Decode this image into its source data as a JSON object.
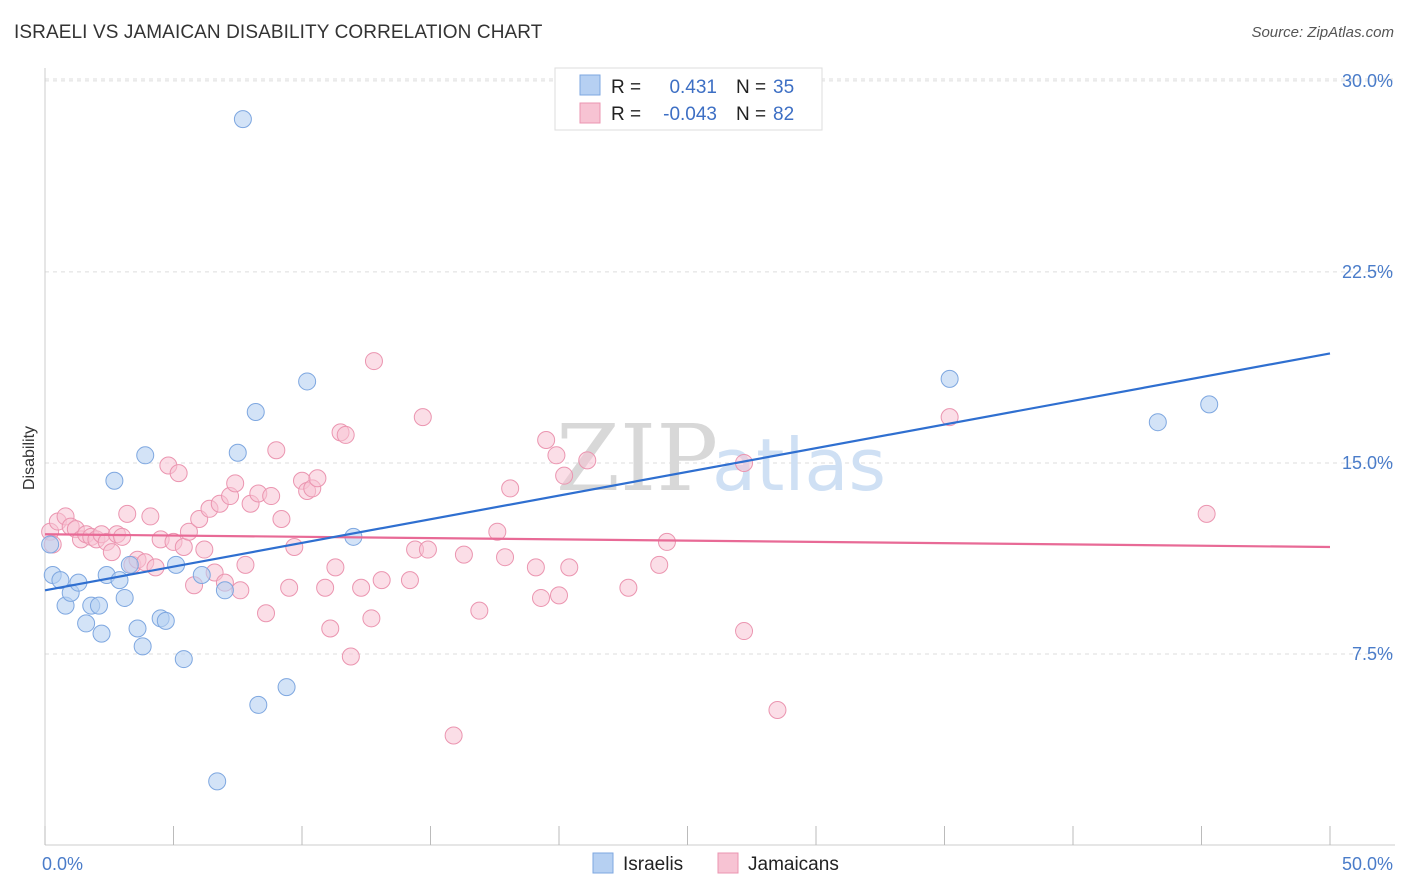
{
  "title": "ISRAELI VS JAMAICAN DISABILITY CORRELATION CHART",
  "source": "Source: ZipAtlas.com",
  "watermark": {
    "zip": "ZIP",
    "atlas": "atlas"
  },
  "colors": {
    "israelis_fill": "#b6d0f2",
    "israelis_stroke": "#7ea7e0",
    "israelis_line": "#2f6fd0",
    "jamaicans_fill": "#f7c3d3",
    "jamaicans_stroke": "#eb95b0",
    "jamaicans_line": "#e86a96",
    "tick_text": "#4a7cc9",
    "grid": "#dddddd"
  },
  "legend": {
    "israelis": {
      "r_label": "R =",
      "r_value": "0.431",
      "n_label": "N =",
      "n_value": "35"
    },
    "jamaicans": {
      "r_label": "R =",
      "r_value": "-0.043",
      "n_label": "N =",
      "n_value": "82"
    }
  },
  "bottom_legend": {
    "israelis": "Israelis",
    "jamaicans": "Jamaicans"
  },
  "chart_data": {
    "type": "scatter",
    "title": "ISRAELI VS JAMAICAN DISABILITY CORRELATION CHART",
    "xlabel": "",
    "ylabel": "Disability",
    "xlim": [
      0,
      50
    ],
    "ylim": [
      0,
      31
    ],
    "x_tick_labels": [
      "0.0%",
      "50.0%"
    ],
    "y_ticks": [
      7.5,
      15.0,
      22.5,
      30.0
    ],
    "y_tick_labels": [
      "7.5%",
      "15.0%",
      "22.5%",
      "30.0%"
    ],
    "grid": "horizontal dashed",
    "legend_position": "top-center",
    "series": [
      {
        "name": "Israelis",
        "r": 0.431,
        "n": 35,
        "trend": {
          "x": [
            0,
            50
          ],
          "y": [
            10.0,
            19.3
          ]
        },
        "points": [
          [
            0.3,
            10.6
          ],
          [
            0.6,
            10.4
          ],
          [
            0.8,
            9.4
          ],
          [
            1.0,
            9.9
          ],
          [
            1.3,
            10.3
          ],
          [
            1.6,
            8.7
          ],
          [
            1.8,
            9.4
          ],
          [
            2.1,
            9.4
          ],
          [
            2.2,
            8.3
          ],
          [
            2.4,
            10.6
          ],
          [
            2.7,
            14.3
          ],
          [
            2.9,
            10.4
          ],
          [
            3.1,
            9.7
          ],
          [
            3.3,
            11.0
          ],
          [
            3.6,
            8.5
          ],
          [
            3.8,
            7.8
          ],
          [
            3.9,
            15.3
          ],
          [
            4.5,
            8.9
          ],
          [
            4.7,
            8.8
          ],
          [
            5.1,
            11.0
          ],
          [
            5.4,
            7.3
          ],
          [
            6.1,
            10.6
          ],
          [
            6.7,
            2.5
          ],
          [
            7.0,
            10.0
          ],
          [
            7.5,
            15.4
          ],
          [
            7.7,
            28.5
          ],
          [
            8.2,
            17.0
          ],
          [
            8.3,
            5.5
          ],
          [
            9.4,
            6.2
          ],
          [
            10.2,
            18.2
          ],
          [
            12.0,
            12.1
          ],
          [
            35.2,
            18.3
          ],
          [
            43.3,
            16.6
          ],
          [
            45.3,
            17.3
          ],
          [
            0.2,
            11.8
          ]
        ]
      },
      {
        "name": "Jamaicans",
        "r": -0.043,
        "n": 82,
        "trend": {
          "x": [
            0,
            50
          ],
          "y": [
            12.2,
            11.7
          ]
        },
        "points": [
          [
            0.2,
            12.3
          ],
          [
            0.3,
            11.8
          ],
          [
            0.5,
            12.7
          ],
          [
            0.8,
            12.9
          ],
          [
            1.0,
            12.5
          ],
          [
            1.2,
            12.4
          ],
          [
            1.4,
            12.0
          ],
          [
            1.6,
            12.2
          ],
          [
            1.8,
            12.1
          ],
          [
            2.0,
            12.0
          ],
          [
            2.2,
            12.2
          ],
          [
            2.4,
            11.9
          ],
          [
            2.6,
            11.5
          ],
          [
            2.8,
            12.2
          ],
          [
            3.0,
            12.1
          ],
          [
            3.2,
            13.0
          ],
          [
            3.4,
            11.0
          ],
          [
            3.6,
            11.2
          ],
          [
            3.9,
            11.1
          ],
          [
            4.1,
            12.9
          ],
          [
            4.3,
            10.9
          ],
          [
            4.5,
            12.0
          ],
          [
            4.8,
            14.9
          ],
          [
            5.0,
            11.9
          ],
          [
            5.2,
            14.6
          ],
          [
            5.4,
            11.7
          ],
          [
            5.6,
            12.3
          ],
          [
            5.8,
            10.2
          ],
          [
            6.0,
            12.8
          ],
          [
            6.2,
            11.6
          ],
          [
            6.4,
            13.2
          ],
          [
            6.6,
            10.7
          ],
          [
            6.8,
            13.4
          ],
          [
            7.0,
            10.3
          ],
          [
            7.2,
            13.7
          ],
          [
            7.4,
            14.2
          ],
          [
            7.6,
            10.0
          ],
          [
            7.8,
            11.0
          ],
          [
            8.0,
            13.4
          ],
          [
            8.3,
            13.8
          ],
          [
            8.6,
            9.1
          ],
          [
            8.8,
            13.7
          ],
          [
            9.0,
            15.5
          ],
          [
            9.2,
            12.8
          ],
          [
            9.5,
            10.1
          ],
          [
            9.7,
            11.7
          ],
          [
            10.0,
            14.3
          ],
          [
            10.2,
            13.9
          ],
          [
            10.4,
            14.0
          ],
          [
            10.6,
            14.4
          ],
          [
            10.9,
            10.1
          ],
          [
            11.1,
            8.5
          ],
          [
            11.3,
            10.9
          ],
          [
            11.5,
            16.2
          ],
          [
            11.7,
            16.1
          ],
          [
            11.9,
            7.4
          ],
          [
            12.3,
            10.1
          ],
          [
            12.7,
            8.9
          ],
          [
            12.8,
            19.0
          ],
          [
            13.1,
            10.4
          ],
          [
            14.2,
            10.4
          ],
          [
            14.4,
            11.6
          ],
          [
            14.7,
            16.8
          ],
          [
            14.9,
            11.6
          ],
          [
            15.9,
            4.3
          ],
          [
            16.3,
            11.4
          ],
          [
            16.9,
            9.2
          ],
          [
            17.6,
            12.3
          ],
          [
            17.9,
            11.3
          ],
          [
            18.1,
            14.0
          ],
          [
            19.1,
            10.9
          ],
          [
            19.3,
            9.7
          ],
          [
            19.5,
            15.9
          ],
          [
            19.9,
            15.3
          ],
          [
            20.0,
            9.8
          ],
          [
            20.2,
            14.5
          ],
          [
            20.4,
            10.9
          ],
          [
            21.1,
            15.1
          ],
          [
            22.7,
            10.1
          ],
          [
            23.9,
            11.0
          ],
          [
            24.2,
            11.9
          ],
          [
            27.2,
            8.4
          ]
        ]
      }
    ],
    "extra_points_jamaicans": [
      [
        27.2,
        15.0
      ],
      [
        28.5,
        5.3
      ],
      [
        35.2,
        16.8
      ],
      [
        45.2,
        13.0
      ]
    ]
  }
}
